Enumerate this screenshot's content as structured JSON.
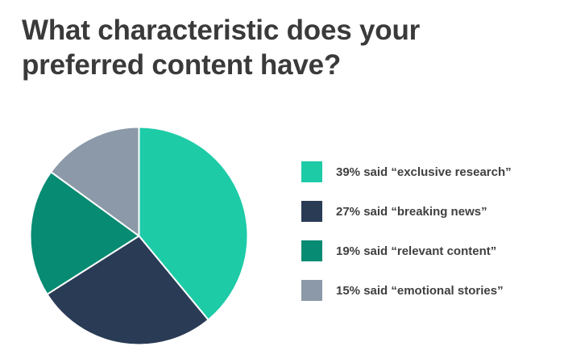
{
  "chart_data": {
    "type": "pie",
    "title": "What characteristic does your preferred content have?",
    "slices": [
      {
        "label": "39% said “exclusive research”",
        "value": 39,
        "color": "#1ecba7"
      },
      {
        "label": "27% said “breaking news”",
        "value": 27,
        "color": "#293b55"
      },
      {
        "label": "19% said “relevant content”",
        "value": 19,
        "color": "#088b73"
      },
      {
        "label": "15% said “emotional stories”",
        "value": 15,
        "color": "#8b99a8"
      }
    ],
    "legend_position": "right"
  }
}
